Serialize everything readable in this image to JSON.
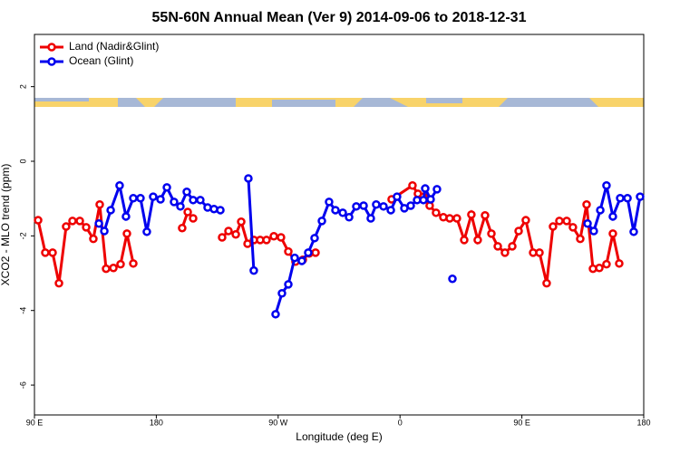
{
  "chart_data": {
    "type": "line",
    "title": "55N-60N Annual Mean (Ver 9)   2014-09-06 to 2018-12-31",
    "xlabel": "Longitude (deg E)",
    "ylabel": "XCO2 - MLO trend (ppm)",
    "xlim": [
      90,
      540
    ],
    "ylim": [
      -6.8,
      3.4
    ],
    "xticks": [
      {
        "value": 90,
        "label": "90 E"
      },
      180,
      {
        "value": 270,
        "label": "90 W"
      },
      {
        "value": 360,
        "label": "0"
      },
      {
        "value": 450,
        "label": "90 E"
      },
      {
        "value": 540,
        "label": "180"
      }
    ],
    "yticks": [
      -6,
      -4,
      -2,
      0,
      2
    ],
    "legend": "top-left",
    "series": [
      {
        "name": "Land (Nadir&Glint)",
        "color": "#ee0000",
        "x": [
          92.7,
          98.0,
          103.4,
          108.1,
          113.4,
          118.1,
          123.5,
          128.2,
          133.5,
          138.2,
          142.9,
          148.3,
          153.6,
          158.3,
          163.0,
          null,
          199.1,
          203.2,
          207.2,
          null,
          228.6,
          233.3,
          238.7,
          242.7,
          247.4,
          252.1,
          256.7,
          261.4,
          266.8,
          272.1,
          277.5,
          282.8,
          288.2,
          292.9,
          297.6,
          null,
          353.8,
          369.2,
          373.2,
          377.3,
          381.9,
          386.6,
          392.0,
          396.7,
          402.0,
          407.4,
          412.7,
          417.4,
          422.8,
          427.5,
          432.2,
          437.5,
          442.9,
          447.6,
          452.9,
          458.3,
          463.0,
          468.3,
          473.0,
          477.7,
          483.1,
          487.7,
          493.1,
          497.8,
          502.5,
          507.2,
          512.5,
          517.2,
          521.9
        ],
        "values": [
          -1.58,
          -2.45,
          -2.45,
          -3.27,
          -1.75,
          -1.6,
          -1.6,
          -1.77,
          -2.08,
          -1.16,
          -2.88,
          -2.86,
          -2.76,
          -1.94,
          -2.74,
          null,
          -1.79,
          -1.36,
          -1.53,
          null,
          -2.04,
          -1.87,
          -1.96,
          -1.62,
          -2.21,
          -2.11,
          -2.11,
          -2.11,
          -2.01,
          -2.04,
          -2.42,
          -2.69,
          -2.64,
          -2.47,
          -2.45,
          null,
          -1.02,
          -0.65,
          -0.87,
          -0.95,
          -1.19,
          -1.38,
          -1.5,
          -1.53,
          -1.53,
          -2.11,
          -1.43,
          -2.11,
          -1.45,
          -1.94,
          -2.28,
          -2.45,
          -2.28,
          -1.87,
          -1.58,
          -2.45,
          -2.45,
          -3.27,
          -1.75,
          -1.6,
          -1.6,
          -1.77,
          -2.08,
          -1.16,
          -2.88,
          -2.86,
          -2.76,
          -1.94,
          -2.74
        ]
      },
      {
        "name": "Ocean (Glint)",
        "color": "#0000ee",
        "x": [
          137.6,
          141.6,
          146.3,
          152.9,
          157.6,
          163.0,
          168.3,
          173.0,
          177.7,
          183.1,
          187.8,
          193.1,
          197.8,
          202.5,
          207.2,
          212.5,
          217.9,
          222.6,
          227.3,
          null,
          248.0,
          252.0,
          null,
          268.1,
          272.8,
          277.5,
          282.2,
          287.5,
          292.2,
          296.9,
          302.3,
          307.6,
          312.3,
          317.7,
          322.4,
          327.7,
          333.1,
          338.4,
          342.4,
          347.8,
          353.2,
          357.8,
          363.2,
          367.9,
          372.6,
          377.3,
          378.6,
          382.6,
          387.3,
          null,
          398.7,
          null,
          498.5,
          503.1,
          507.9,
          512.5,
          517.2,
          522.6,
          528.0,
          532.6,
          537.3
        ],
        "values": [
          -1.67,
          -1.87,
          -1.31,
          -0.65,
          -1.48,
          -0.99,
          -0.99,
          -1.89,
          -0.95,
          -1.02,
          -0.7,
          -1.09,
          -1.21,
          -0.82,
          -1.04,
          -1.04,
          -1.24,
          -1.28,
          -1.31,
          null,
          -0.46,
          -2.93,
          null,
          -4.1,
          -3.54,
          -3.3,
          -2.59,
          -2.67,
          -2.45,
          -2.06,
          -1.6,
          -1.09,
          -1.31,
          -1.38,
          -1.5,
          -1.21,
          -1.19,
          -1.53,
          -1.16,
          -1.21,
          -1.31,
          -0.95,
          -1.26,
          -1.19,
          -1.04,
          -1.04,
          -0.73,
          -1.02,
          -0.75,
          null,
          -3.15,
          null,
          -1.67,
          -1.87,
          -1.31,
          -0.65,
          -1.48,
          -0.99,
          -0.99,
          -1.89,
          -0.95
        ]
      }
    ]
  }
}
